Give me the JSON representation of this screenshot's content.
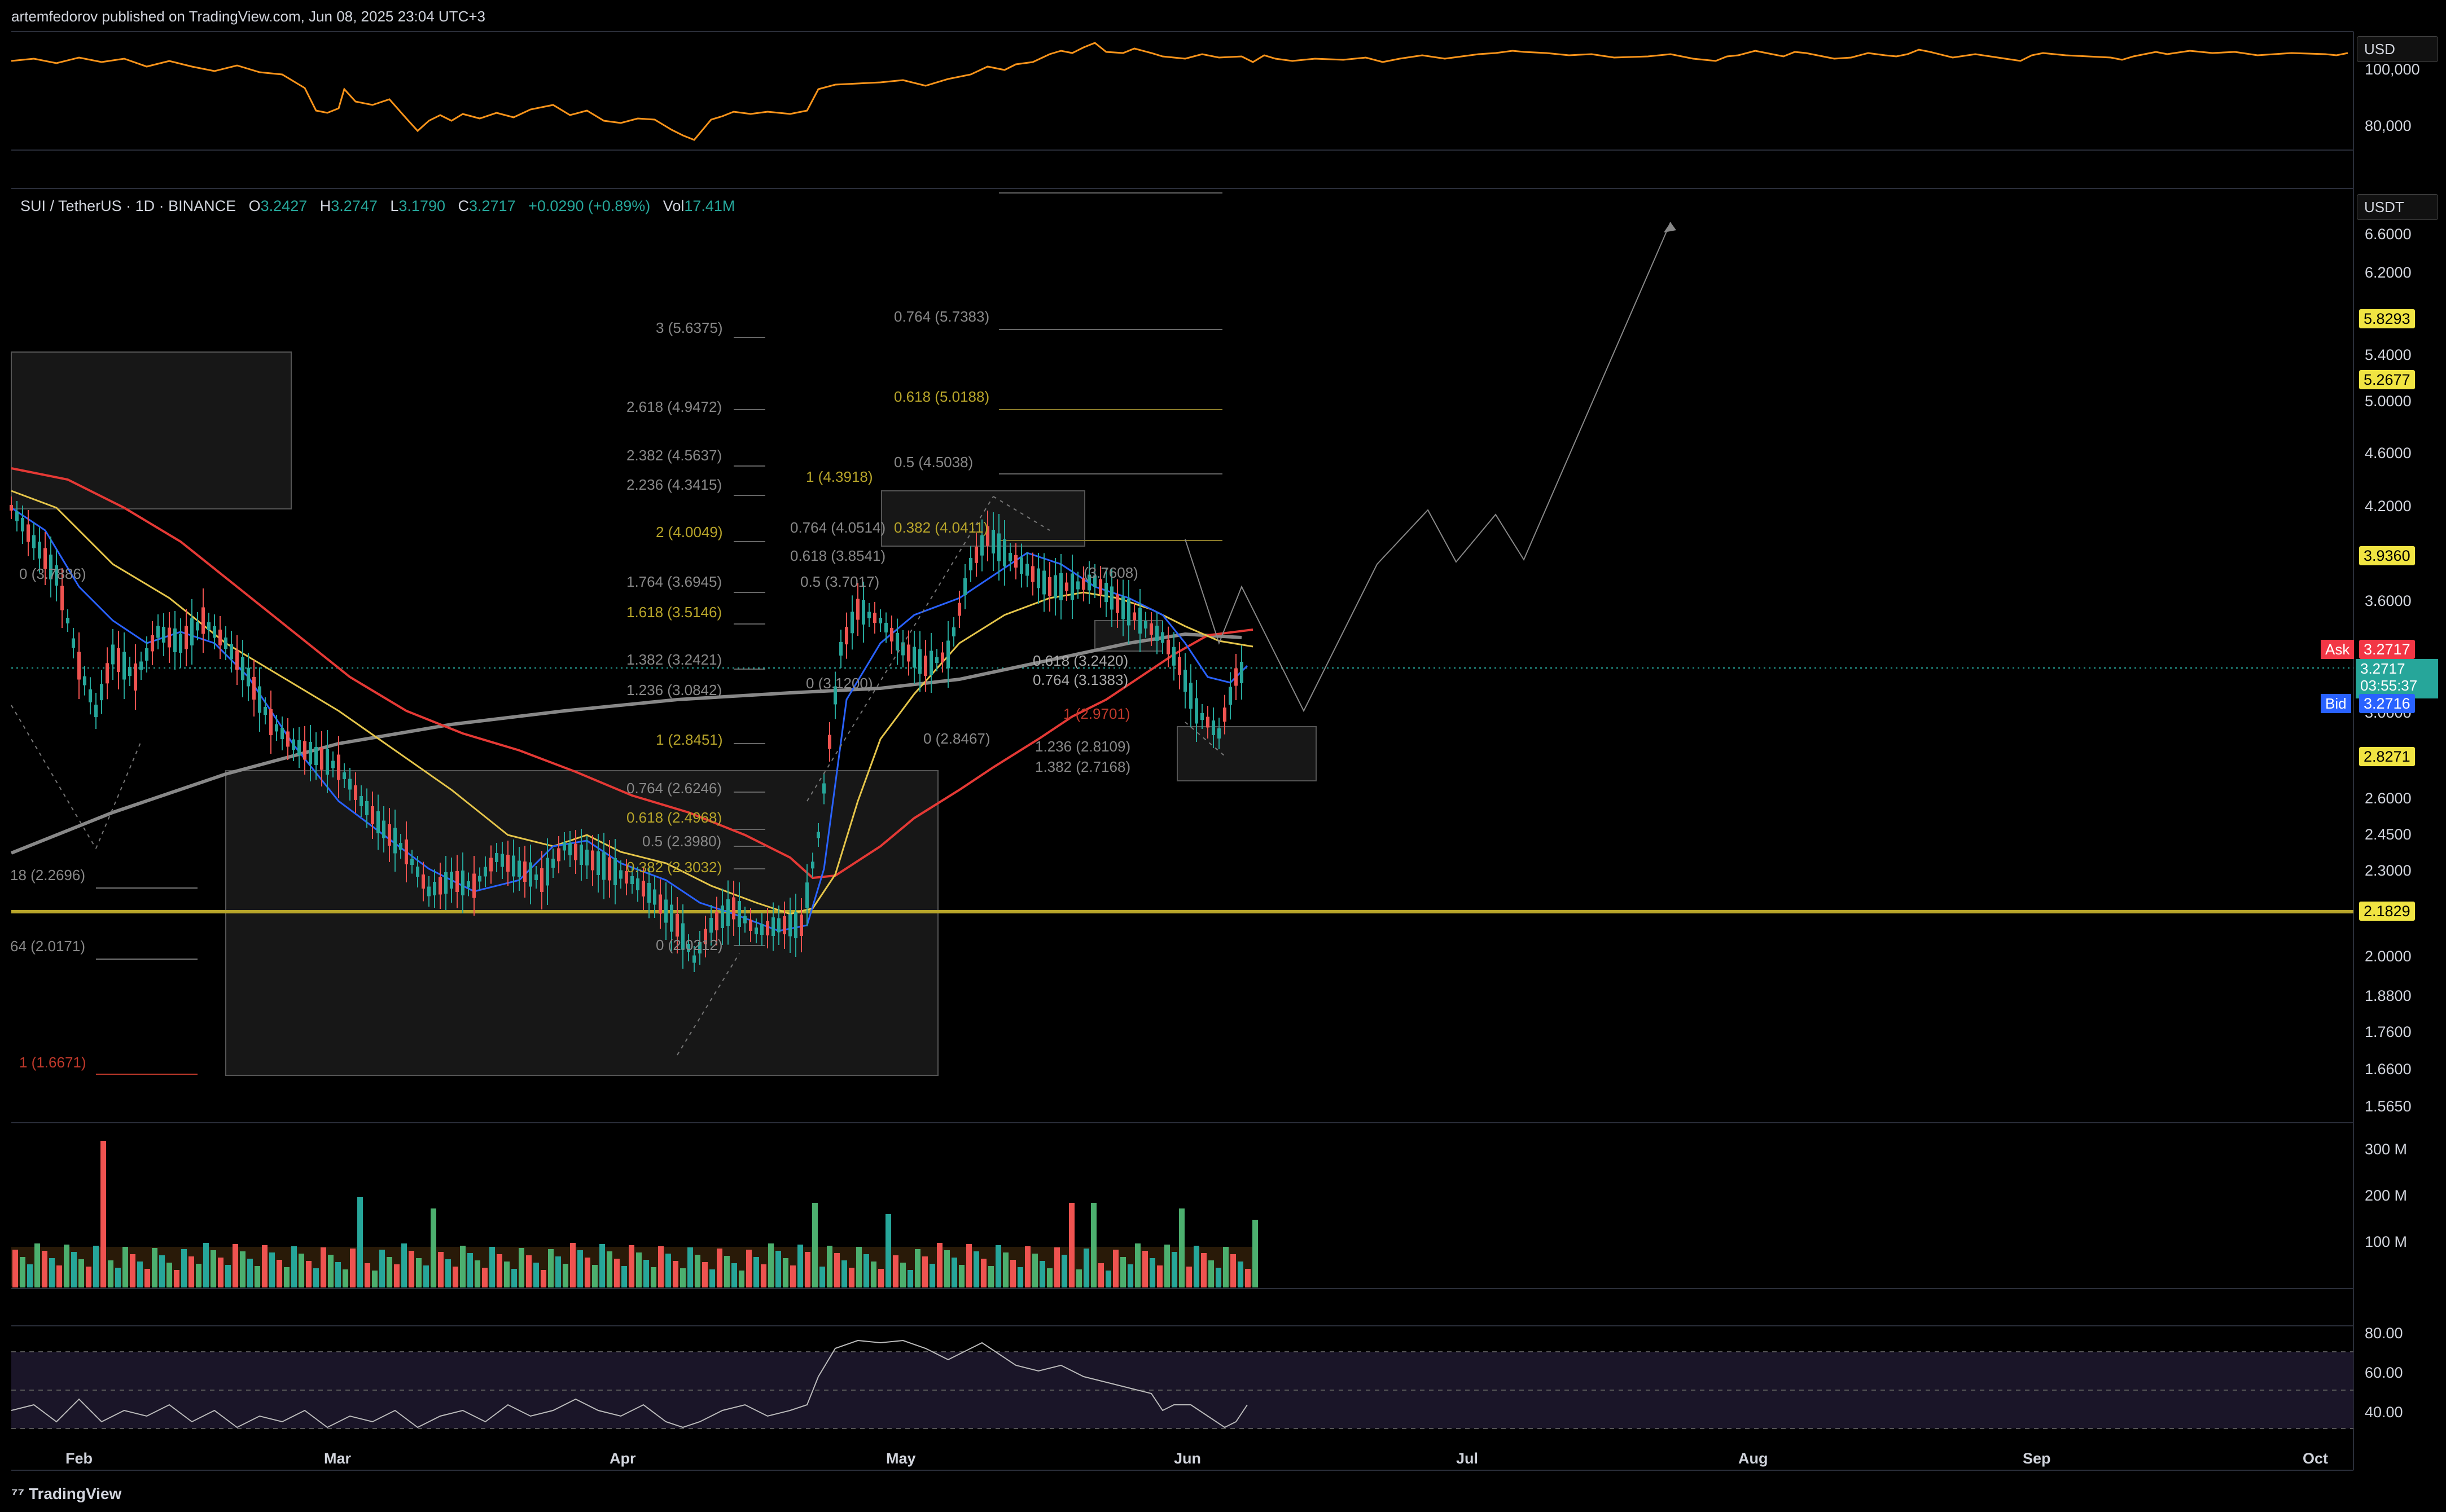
{
  "header": {
    "published": "artemfedorov published on TradingView.com, Jun 08, 2025 23:04 UTC+3"
  },
  "top_pane": {
    "currency": "USD",
    "ticks": [
      "100,000",
      "80,000"
    ]
  },
  "main_pane": {
    "currency": "USDT",
    "legend": {
      "symbol": "SUI / TetherUS · 1D · BINANCE",
      "o_label": "O",
      "o": "3.2427",
      "h_label": "H",
      "h": "3.2747",
      "l_label": "L",
      "l": "3.1790",
      "c_label": "C",
      "c": "3.2717",
      "change": "+0.0290 (+0.89%)",
      "vol_label": "Vol",
      "vol": "17.41M"
    },
    "price_ticks": [
      "6.6000",
      "6.2000",
      "5.4000",
      "5.0000",
      "4.6000",
      "4.2000",
      "3.6000",
      "3.0000",
      "2.6000",
      "2.4500",
      "2.3000",
      "2.0000",
      "1.8800",
      "1.7600",
      "1.6600",
      "1.5650"
    ],
    "badges": [
      {
        "text": "5.8293"
      },
      {
        "text": "5.2677"
      },
      {
        "text": "3.9360"
      },
      {
        "text": "2.8271"
      },
      {
        "text": "2.1829"
      }
    ],
    "ask": {
      "label": "Ask",
      "value": "3.2717"
    },
    "last": {
      "value": "3.2717",
      "countdown": "03:55:37"
    },
    "bid": {
      "label": "Bid",
      "value": "3.2716"
    },
    "fib_left": [
      "3 (5.6375)",
      "2.618 (4.9472)",
      "2.382 (4.5637)",
      "2.236 (4.3415)",
      "2 (4.0049)",
      "1.764 (3.6945)",
      "1.618 (3.5146)",
      "1.382 (3.2421)",
      "1.236 (3.0842)",
      "1 (2.8451)",
      "0.764 (2.6246)",
      "0.618 (2.4968)",
      "0.5 (2.3980)",
      "0.382 (2.3032)",
      "0 (2.0212)"
    ],
    "fib_far_left": [
      "0 (3.7886)",
      "18 (2.2696)",
      "64 (2.0171)",
      "1 (1.6671)"
    ],
    "fib_mid": [
      "0.764 (5.7383)",
      "0.618 (5.0188)",
      "0.5 (4.5038)",
      "1 (4.3918)",
      "0.382 (4.0411)",
      "0.764 (4.0514)",
      "0.618 (3.8541)",
      "0.5 (3.7017)",
      "0 (3.1200)",
      "0 (2.8467)"
    ],
    "fib_right": [
      "(3.7608)",
      "0.618 (3.2420)",
      "0.764 (3.1383)",
      "1 (2.9701)",
      "1.236 (2.8109)",
      "1.382 (2.7168)"
    ]
  },
  "volume_pane": {
    "ticks": [
      "300 M",
      "200 M",
      "100 M"
    ]
  },
  "rsi_pane": {
    "ticks": [
      "80.00",
      "60.00",
      "40.00"
    ]
  },
  "time_axis": [
    "Feb",
    "Mar",
    "Apr",
    "May",
    "Jun",
    "Jul",
    "Aug",
    "Sep",
    "Oct"
  ],
  "footer": {
    "brand": "TradingView"
  },
  "colors": {
    "up": "#26a69a",
    "down": "#ef5350",
    "badge_yellow": "#f0e442",
    "ask": "#f23645",
    "bid": "#2962ff",
    "btc_line": "#f7931a"
  }
}
